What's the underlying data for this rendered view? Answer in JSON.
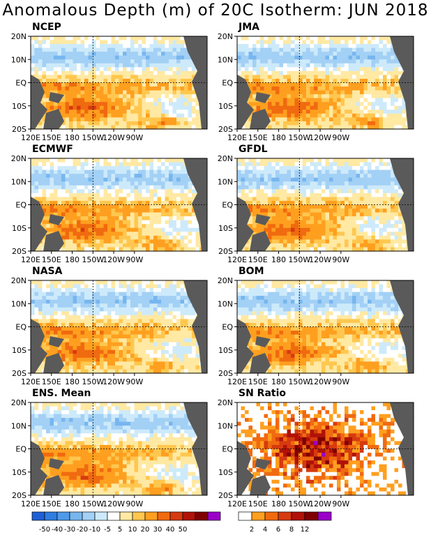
{
  "title": "Anomalous Depth (m) of 20C Isotherm: JUN 2018",
  "lat_labels": [
    "20N",
    "10N",
    "EQ",
    "10S",
    "20S"
  ],
  "lon_labels": [
    "120E",
    "150E",
    "180",
    "150W",
    "120W",
    "90W"
  ],
  "panels": [
    {
      "name": "NCEP"
    },
    {
      "name": "JMA"
    },
    {
      "name": "ECMWF"
    },
    {
      "name": "GFDL"
    },
    {
      "name": "NASA"
    },
    {
      "name": "BOM"
    },
    {
      "name": "ENS. Mean"
    },
    {
      "name": "SN Ratio"
    }
  ],
  "colorbar_anomaly": {
    "colors": [
      "#1f5fd6",
      "#2f7de0",
      "#4f9ae8",
      "#77b6ef",
      "#a3d0f5",
      "#cdeafb",
      "#ffffff",
      "#ffe9a3",
      "#ffc74f",
      "#ff9f1f",
      "#f06a10",
      "#d63a10",
      "#b01208",
      "#7f0000",
      "#9b00c8"
    ],
    "labels": [
      "-50",
      "-40",
      "-30",
      "-20",
      "-10",
      "-5",
      "5",
      "10",
      "20",
      "30",
      "40",
      "50"
    ]
  },
  "colorbar_sn": {
    "colors": [
      "#ffffff",
      "#ff9f1f",
      "#f06a10",
      "#d63a10",
      "#b01208",
      "#7f0000",
      "#9b00c8"
    ],
    "labels": [
      "2",
      "4",
      "6",
      "8",
      "12"
    ]
  },
  "colors": {
    "land": "#5a5a5a",
    "ocean_neutral": "#ffffff"
  }
}
